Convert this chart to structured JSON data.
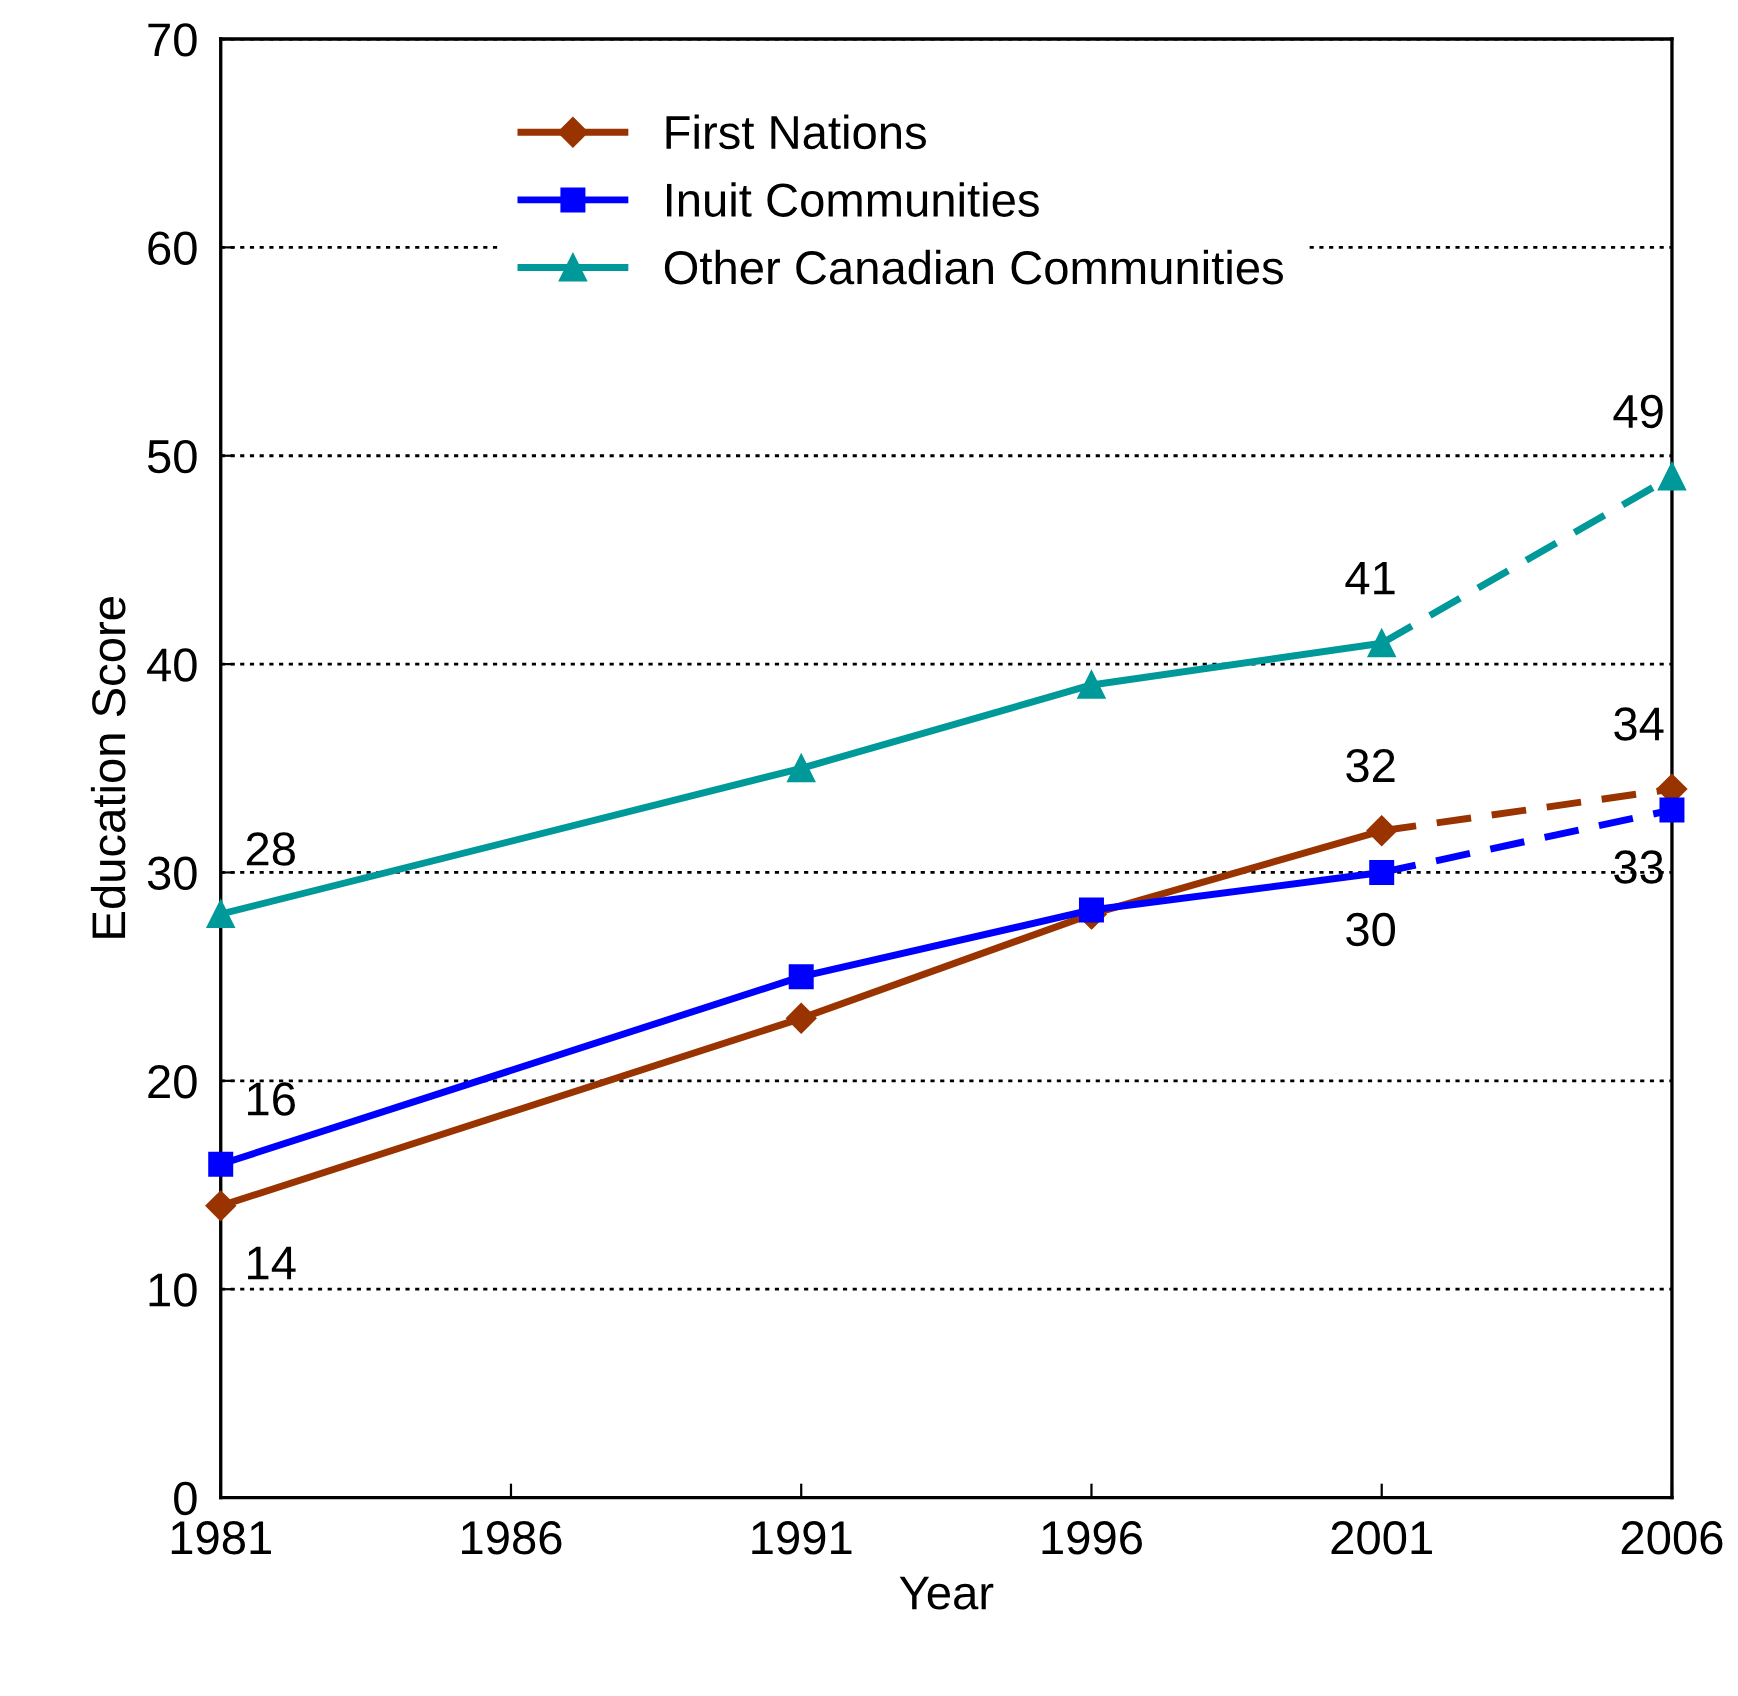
{
  "chart_data": {
    "type": "line",
    "xlabel": "Year",
    "ylabel": "Education Score",
    "x": [
      1981,
      1991,
      1996,
      2001,
      2006
    ],
    "xlim": [
      1981,
      2006
    ],
    "xticks": [
      1981,
      1986,
      1991,
      1996,
      2001,
      2006
    ],
    "ylim": [
      0,
      70
    ],
    "yticks": [
      0,
      10,
      20,
      30,
      40,
      50,
      60,
      70
    ],
    "grid": "y",
    "legend": "top",
    "series": [
      {
        "name": "First Nations",
        "color": "#993300",
        "marker": "diamond",
        "line_style": "solid",
        "values": [
          14,
          23,
          28,
          32,
          null
        ],
        "value_labels": [
          "14",
          null,
          null,
          "32",
          null
        ]
      },
      {
        "name": "Inuit Communities",
        "color": "#0000ff",
        "marker": "square",
        "line_style": "solid",
        "values": [
          16,
          25,
          28.2,
          30,
          null
        ],
        "value_labels": [
          "16",
          null,
          null,
          "30",
          null
        ]
      },
      {
        "name": "Other Canadian Communities",
        "color": "#009999",
        "marker": "triangle",
        "line_style": "solid",
        "values": [
          28,
          35,
          39,
          41,
          null
        ],
        "value_labels": [
          "28",
          null,
          null,
          "41",
          null
        ]
      },
      {
        "color": "#993300",
        "marker": "diamond",
        "line_style": "dashed",
        "values": [
          null,
          null,
          null,
          32,
          34
        ],
        "value_labels": [
          null,
          null,
          null,
          null,
          "34"
        ]
      },
      {
        "color": "#0000ff",
        "marker": "square",
        "line_style": "dashed",
        "values": [
          null,
          null,
          null,
          30,
          33
        ],
        "value_labels": [
          null,
          null,
          null,
          null,
          "33"
        ]
      },
      {
        "color": "#009999",
        "marker": "triangle",
        "line_style": "dashed",
        "values": [
          null,
          null,
          null,
          41,
          49
        ],
        "value_labels": [
          null,
          null,
          null,
          null,
          "49"
        ]
      }
    ]
  }
}
